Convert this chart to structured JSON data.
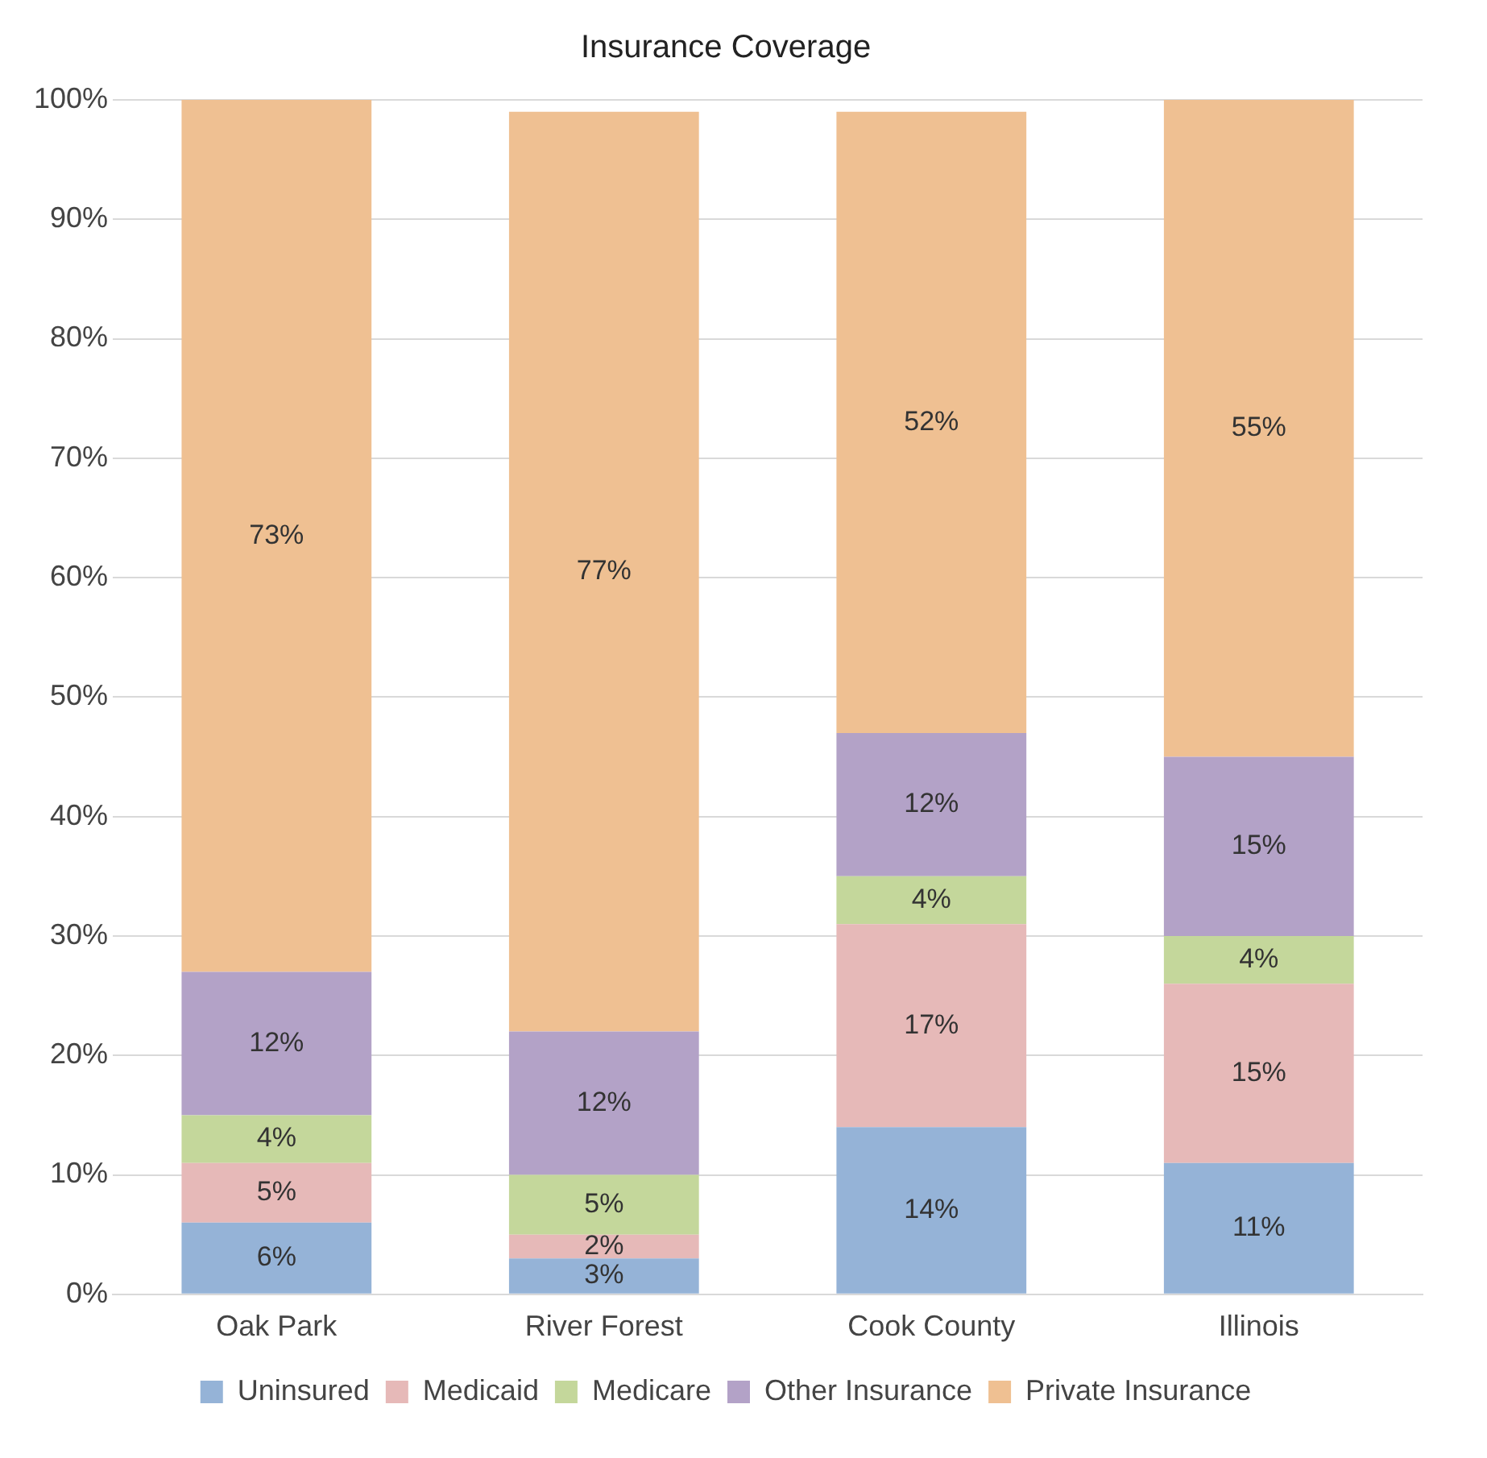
{
  "chart_data": {
    "type": "bar",
    "title": "Insurance Coverage",
    "categories": [
      "Oak Park",
      "River Forest",
      "Cook County",
      "Illinois"
    ],
    "stacked": true,
    "series": [
      {
        "name": "Uninsured",
        "color": "#95b3d7",
        "values": [
          6,
          3,
          14,
          11
        ],
        "value_labels": [
          "6%",
          "3%",
          "14%",
          "11%"
        ]
      },
      {
        "name": "Medicaid",
        "color": "#e6b9b8",
        "values": [
          5,
          2,
          17,
          15
        ],
        "value_labels": [
          "5%",
          "2%",
          "17%",
          "15%"
        ]
      },
      {
        "name": "Medicare",
        "color": "#c4d79b",
        "values": [
          4,
          5,
          4,
          4
        ],
        "value_labels": [
          "4%",
          "5%",
          "4%",
          "4%"
        ]
      },
      {
        "name": "Other Insurance",
        "color": "#b3a2c7",
        "values": [
          12,
          12,
          12,
          15
        ],
        "value_labels": [
          "12%",
          "12%",
          "12%",
          "15%"
        ]
      },
      {
        "name": "Private Insurance",
        "color": "#efc092",
        "values": [
          73,
          77,
          52,
          55
        ],
        "value_labels": [
          "73%",
          "77%",
          "52%",
          "55%"
        ]
      }
    ],
    "ylim": [
      0,
      100
    ],
    "yticks": [
      {
        "value": 0,
        "label": "0%"
      },
      {
        "value": 10,
        "label": "10%"
      },
      {
        "value": 20,
        "label": "20%"
      },
      {
        "value": 30,
        "label": "30%"
      },
      {
        "value": 40,
        "label": "40%"
      },
      {
        "value": 50,
        "label": "50%"
      },
      {
        "value": 60,
        "label": "60%"
      },
      {
        "value": 70,
        "label": "70%"
      },
      {
        "value": 80,
        "label": "80%"
      },
      {
        "value": 90,
        "label": "90%"
      },
      {
        "value": 100,
        "label": "100%"
      }
    ],
    "grid": "y",
    "legend": "bottom"
  }
}
